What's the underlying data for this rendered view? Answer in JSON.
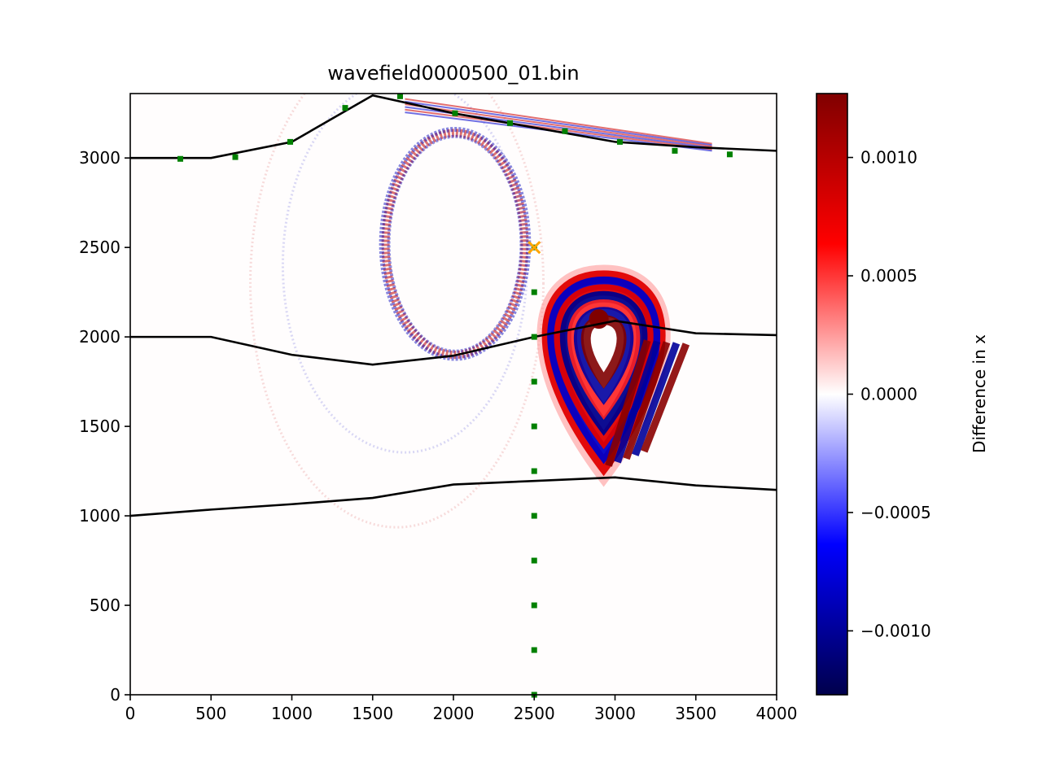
{
  "chart_data": {
    "type": "heatmap",
    "title": "wavefield0000500_01.bin",
    "xlabel": "",
    "ylabel": "",
    "xlim": [
      0,
      4000
    ],
    "ylim": [
      0,
      3360
    ],
    "x_ticks": [
      "0",
      "500",
      "1000",
      "1500",
      "2000",
      "2500",
      "3000",
      "3500",
      "4000"
    ],
    "y_ticks": [
      "0",
      "500",
      "1000",
      "1500",
      "2000",
      "2500",
      "3000"
    ],
    "colorbar": {
      "label": "Difference in x",
      "colormap": "seismic",
      "vmin": -0.00127,
      "vmax": 0.00127,
      "ticks": [
        "−0.0010",
        "−0.0005",
        "0.0000",
        "0.0005",
        "0.0010"
      ]
    },
    "interfaces": [
      {
        "x": [
          0,
          500,
          1000,
          1500,
          2000,
          2500,
          3000,
          3500,
          4000
        ],
        "y": [
          3000,
          3000,
          3090,
          3350,
          3250,
          3170,
          3090,
          3060,
          3040
        ]
      },
      {
        "x": [
          0,
          500,
          1000,
          1500,
          2000,
          2500,
          3000,
          3500,
          4000
        ],
        "y": [
          2000,
          2000,
          1900,
          1845,
          1895,
          2000,
          2090,
          2020,
          2010
        ]
      },
      {
        "x": [
          0,
          500,
          1000,
          1500,
          2000,
          2500,
          3000,
          3500,
          4000
        ],
        "y": [
          1000,
          1035,
          1065,
          1100,
          1175,
          1195,
          1215,
          1170,
          1145
        ]
      }
    ],
    "receivers_surface": {
      "x": [
        310,
        650,
        990,
        1330,
        1670,
        2010,
        2350,
        2690,
        3030,
        3370,
        3710
      ],
      "y": [
        2995,
        3005,
        3090,
        3280,
        3345,
        3250,
        3195,
        3150,
        3090,
        3040,
        3020
      ]
    },
    "receivers_borehole": {
      "x": [
        2500,
        2500,
        2500,
        2500,
        2500,
        2500,
        2500,
        2500,
        2500,
        2500,
        2500
      ],
      "y": [
        0,
        250,
        500,
        750,
        1000,
        1250,
        1500,
        1750,
        2000,
        2250,
        2500
      ]
    },
    "source": {
      "x": 2500,
      "y": 2500,
      "marker": "x",
      "color": "#ffa500"
    },
    "colors": {
      "receiver": "#008000",
      "interface": "#000000"
    }
  }
}
